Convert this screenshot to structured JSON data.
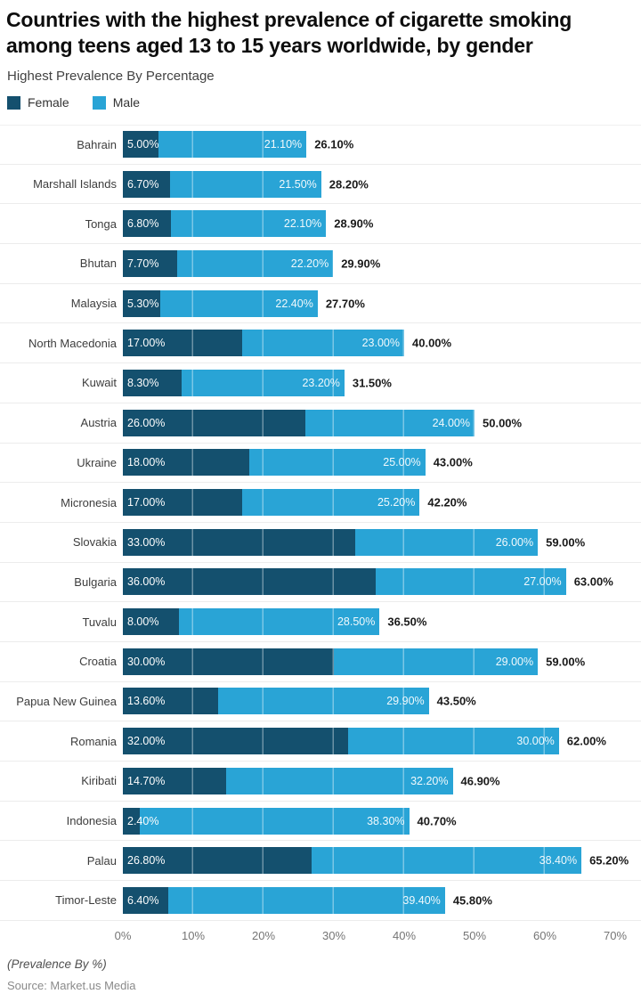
{
  "title": {
    "line1": "Countries with the highest prevalence of cigarette smoking",
    "line2": "among teens aged 13 to 15 years worldwide, by gender"
  },
  "subtitle": "Highest Prevalence By Percentage",
  "legend": [
    {
      "label": "Female",
      "color": "#14506E"
    },
    {
      "label": "Male",
      "color": "#29A4D6"
    }
  ],
  "footer": {
    "note": "(Prevalence By %)",
    "source": "Source: Market.us Media"
  },
  "chart_data": {
    "type": "bar",
    "stacked": true,
    "orientation": "horizontal",
    "xlim": [
      0,
      70
    ],
    "grid": "vertical-lines-on-bars",
    "legend_position": "top-left",
    "ticks": [
      "0%",
      "10%",
      "20%",
      "30%",
      "40%",
      "50%",
      "60%",
      "70%"
    ],
    "series_names": [
      "Female",
      "Male"
    ],
    "colors": {
      "female": "#14506E",
      "male": "#29A4D6",
      "row_separator": "#ECECEC",
      "value_text": "#FFFFFF",
      "total_text": "#1A1A1A"
    },
    "rows": [
      {
        "country": "Bahrain",
        "female": 5.0,
        "male": 21.1,
        "total": 26.1,
        "female_label": "5.00%",
        "male_label": "21.10%",
        "total_label": "26.10%"
      },
      {
        "country": "Marshall Islands",
        "female": 6.7,
        "male": 21.5,
        "total": 28.2,
        "female_label": "6.70%",
        "male_label": "21.50%",
        "total_label": "28.20%"
      },
      {
        "country": "Tonga",
        "female": 6.8,
        "male": 22.1,
        "total": 28.9,
        "female_label": "6.80%",
        "male_label": "22.10%",
        "total_label": "28.90%"
      },
      {
        "country": "Bhutan",
        "female": 7.7,
        "male": 22.2,
        "total": 29.9,
        "female_label": "7.70%",
        "male_label": "22.20%",
        "total_label": "29.90%"
      },
      {
        "country": "Malaysia",
        "female": 5.3,
        "male": 22.4,
        "total": 27.7,
        "female_label": "5.30%",
        "male_label": "22.40%",
        "total_label": "27.70%"
      },
      {
        "country": "North Macedonia",
        "female": 17.0,
        "male": 23.0,
        "total": 40.0,
        "female_label": "17.00%",
        "male_label": "23.00%",
        "total_label": "40.00%"
      },
      {
        "country": "Kuwait",
        "female": 8.3,
        "male": 23.2,
        "total": 31.5,
        "female_label": "8.30%",
        "male_label": "23.20%",
        "total_label": "31.50%"
      },
      {
        "country": "Austria",
        "female": 26.0,
        "male": 24.0,
        "total": 50.0,
        "female_label": "26.00%",
        "male_label": "24.00%",
        "total_label": "50.00%"
      },
      {
        "country": "Ukraine",
        "female": 18.0,
        "male": 25.0,
        "total": 43.0,
        "female_label": "18.00%",
        "male_label": "25.00%",
        "total_label": "43.00%"
      },
      {
        "country": "Micronesia",
        "female": 17.0,
        "male": 25.2,
        "total": 42.2,
        "female_label": "17.00%",
        "male_label": "25.20%",
        "total_label": "42.20%"
      },
      {
        "country": "Slovakia",
        "female": 33.0,
        "male": 26.0,
        "total": 59.0,
        "female_label": "33.00%",
        "male_label": "26.00%",
        "total_label": "59.00%"
      },
      {
        "country": "Bulgaria",
        "female": 36.0,
        "male": 27.0,
        "total": 63.0,
        "female_label": "36.00%",
        "male_label": "27.00%",
        "total_label": "63.00%"
      },
      {
        "country": "Tuvalu",
        "female": 8.0,
        "male": 28.5,
        "total": 36.5,
        "female_label": "8.00%",
        "male_label": "28.50%",
        "total_label": "36.50%"
      },
      {
        "country": "Croatia",
        "female": 30.0,
        "male": 29.0,
        "total": 59.0,
        "female_label": "30.00%",
        "male_label": "29.00%",
        "total_label": "59.00%"
      },
      {
        "country": "Papua New Guinea",
        "female": 13.6,
        "male": 29.9,
        "total": 43.5,
        "female_label": "13.60%",
        "male_label": "29.90%",
        "total_label": "43.50%"
      },
      {
        "country": "Romania",
        "female": 32.0,
        "male": 30.0,
        "total": 62.0,
        "female_label": "32.00%",
        "male_label": "30.00%",
        "total_label": "62.00%"
      },
      {
        "country": "Kiribati",
        "female": 14.7,
        "male": 32.2,
        "total": 46.9,
        "female_label": "14.70%",
        "male_label": "32.20%",
        "total_label": "46.90%"
      },
      {
        "country": "Indonesia",
        "female": 2.4,
        "male": 38.3,
        "total": 40.7,
        "female_label": "2.40%",
        "male_label": "38.30%",
        "total_label": "40.70%"
      },
      {
        "country": "Palau",
        "female": 26.8,
        "male": 38.4,
        "total": 65.2,
        "female_label": "26.80%",
        "male_label": "38.40%",
        "total_label": "65.20%"
      },
      {
        "country": "Timor-Leste",
        "female": 6.4,
        "male": 39.4,
        "total": 45.8,
        "female_label": "6.40%",
        "male_label": "39.40%",
        "total_label": "45.80%"
      }
    ]
  }
}
